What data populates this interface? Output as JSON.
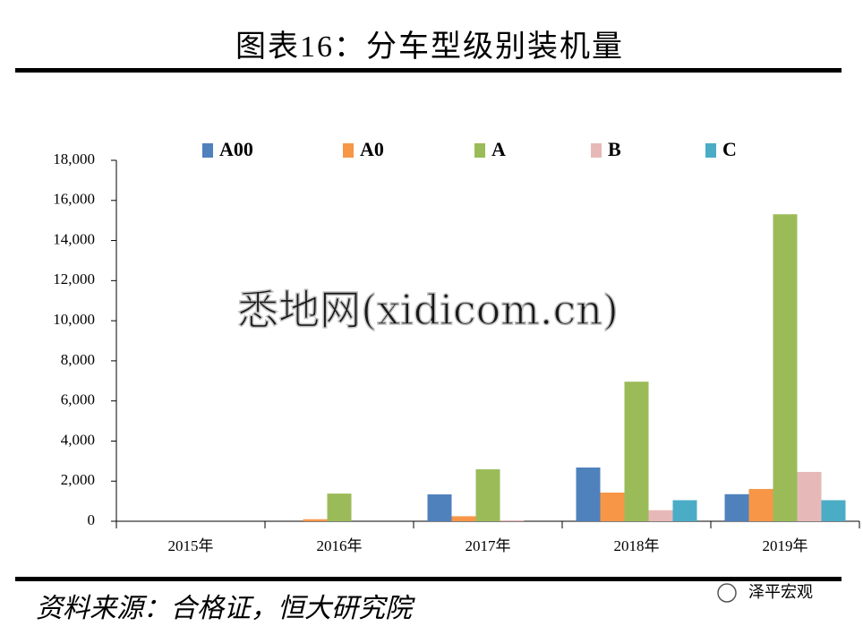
{
  "chart_data": {
    "type": "bar",
    "title": "图表16：分车型级别装机量",
    "source": "资料来源：合格证，恒大研究院",
    "watermark": "悉地网(xidicom.cn)",
    "logo": "泽平宏观",
    "categories": [
      "2015年",
      "2016年",
      "2017年",
      "2018年",
      "2019年"
    ],
    "series": [
      {
        "name": "A00",
        "color": "#4f81bd",
        "values": [
          0,
          0,
          1340,
          2680,
          1350
        ]
      },
      {
        "name": "A0",
        "color": "#f79646",
        "values": [
          0,
          100,
          250,
          1430,
          1610
        ]
      },
      {
        "name": "A",
        "color": "#9bbb59",
        "values": [
          0,
          1380,
          2590,
          6960,
          15310
        ]
      },
      {
        "name": "B",
        "color": "#e6b9b8",
        "values": [
          0,
          0,
          50,
          550,
          2460
        ]
      },
      {
        "name": "C",
        "color": "#4bacc6",
        "values": [
          0,
          0,
          0,
          1050,
          1050
        ]
      }
    ],
    "ylim": [
      0,
      18000
    ],
    "yticks": [
      0,
      {
        "value": 2000,
        "label": "2,000"
      },
      {
        "value": 4000,
        "label": "4,000"
      },
      {
        "value": 6000,
        "label": "6,000"
      },
      {
        "value": 8000,
        "label": "8,000"
      },
      {
        "value": 10000,
        "label": "10,000"
      },
      {
        "value": 12000,
        "label": "12,000"
      },
      {
        "value": 14000,
        "label": "14,000"
      },
      {
        "value": 16000,
        "label": "16,000"
      },
      {
        "value": 18000,
        "label": "18,000"
      }
    ]
  }
}
